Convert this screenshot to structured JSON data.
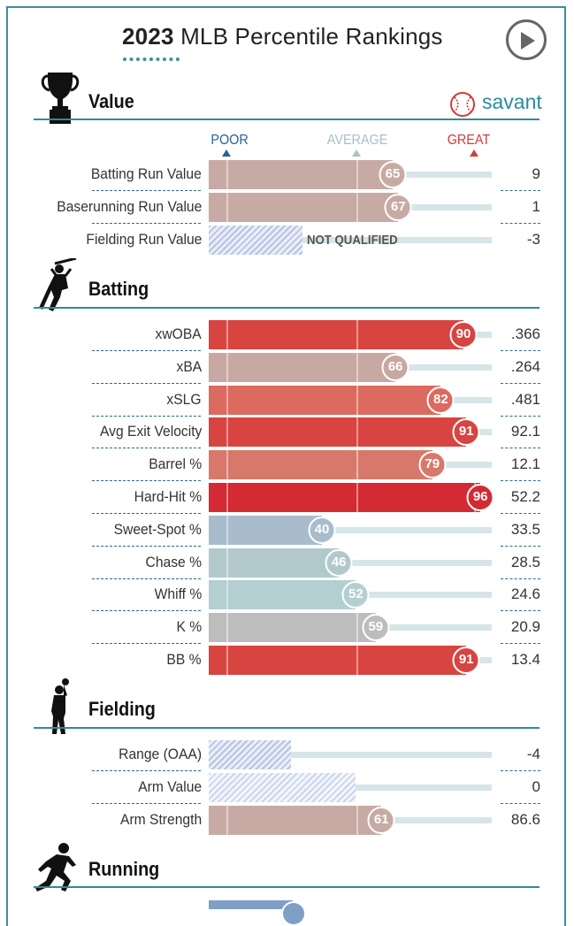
{
  "header": {
    "year": "2023",
    "title_rest": "MLB Percentile Rankings"
  },
  "brand": {
    "label": "savant",
    "color": "#2a8c99"
  },
  "scale": {
    "poor": "POOR",
    "average": "AVERAGE",
    "great": "GREAT"
  },
  "colors": {
    "accent": "#2e8d98",
    "poor": "#2c5f9e",
    "average": "#a9c0c6",
    "great": "#d23a3a"
  },
  "sections": {
    "value": {
      "title": "Value",
      "icon": "trophy-icon",
      "rows": [
        {
          "label": "Batting Run Value",
          "percentile": 65,
          "value": "9"
        },
        {
          "label": "Baserunning Run Value",
          "percentile": 67,
          "value": "1"
        },
        {
          "label": "Fielding Run Value",
          "percentile": null,
          "value": "-3",
          "not_qualified": "NOT QUALIFIED"
        }
      ]
    },
    "batting": {
      "title": "Batting",
      "icon": "batter-icon",
      "rows": [
        {
          "label": "xwOBA",
          "percentile": 90,
          "value": ".366"
        },
        {
          "label": "xBA",
          "percentile": 66,
          "value": ".264"
        },
        {
          "label": "xSLG",
          "percentile": 82,
          "value": ".481"
        },
        {
          "label": "Avg Exit Velocity",
          "percentile": 91,
          "value": "92.1"
        },
        {
          "label": "Barrel %",
          "percentile": 79,
          "value": "12.1"
        },
        {
          "label": "Hard-Hit %",
          "percentile": 96,
          "value": "52.2"
        },
        {
          "label": "Sweet-Spot %",
          "percentile": 40,
          "value": "33.5"
        },
        {
          "label": "Chase %",
          "percentile": 46,
          "value": "28.5"
        },
        {
          "label": "Whiff %",
          "percentile": 52,
          "value": "24.6"
        },
        {
          "label": "K %",
          "percentile": 59,
          "value": "20.9"
        },
        {
          "label": "BB %",
          "percentile": 91,
          "value": "13.4"
        }
      ]
    },
    "fielding": {
      "title": "Fielding",
      "icon": "fielder-icon",
      "rows": [
        {
          "label": "Range (OAA)",
          "percentile": null,
          "level": 29,
          "value": "-4"
        },
        {
          "label": "Arm Value",
          "percentile": null,
          "level": 52,
          "value": "0"
        },
        {
          "label": "Arm Strength",
          "percentile": 61,
          "value": "86.6"
        }
      ]
    },
    "running": {
      "title": "Running",
      "icon": "runner-icon"
    }
  }
}
